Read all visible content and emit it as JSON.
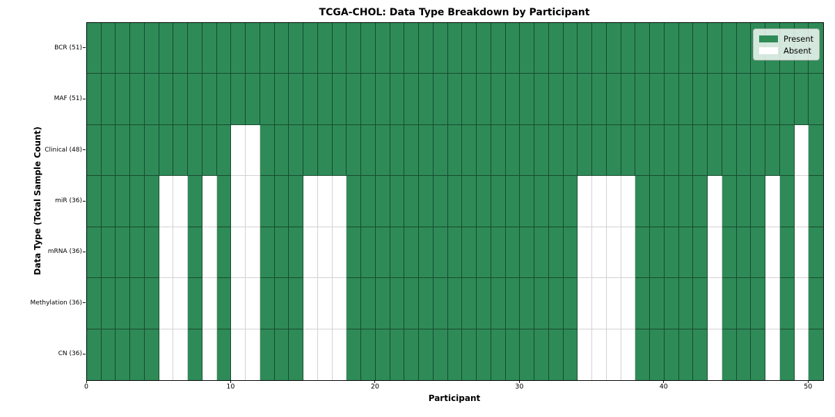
{
  "chart_data": {
    "type": "heatmap",
    "title": "TCGA-CHOL: Data Type Breakdown by Participant",
    "xlabel": "Participant",
    "ylabel": "Data Type (Total Sample Count)",
    "x_ticks": [
      0,
      10,
      20,
      30,
      40,
      50
    ],
    "x_range": [
      0,
      51
    ],
    "n_participants": 51,
    "legend_position": "upper right",
    "legend": [
      {
        "label": "Present",
        "color": "#2E8B57"
      },
      {
        "label": "Absent",
        "color": "#ffffff"
      }
    ],
    "colors": {
      "present": "#2E8B57",
      "absent": "#ffffff"
    },
    "rows": [
      {
        "label": "BCR (51)",
        "data_type": "BCR",
        "total_sample_count": 51,
        "absent_participants": []
      },
      {
        "label": "MAF (51)",
        "data_type": "MAF",
        "total_sample_count": 51,
        "absent_participants": []
      },
      {
        "label": "Clinical (48)",
        "data_type": "Clinical",
        "total_sample_count": 48,
        "absent_participants": [
          10,
          11,
          49
        ]
      },
      {
        "label": "miR (36)",
        "data_type": "miR",
        "total_sample_count": 36,
        "absent_participants": [
          5,
          6,
          8,
          10,
          11,
          15,
          16,
          17,
          34,
          35,
          36,
          37,
          43,
          47,
          49
        ]
      },
      {
        "label": "mRNA (36)",
        "data_type": "mRNA",
        "total_sample_count": 36,
        "absent_participants": [
          5,
          6,
          8,
          10,
          11,
          15,
          16,
          17,
          34,
          35,
          36,
          37,
          43,
          47,
          49
        ]
      },
      {
        "label": "Methylation (36)",
        "data_type": "Methylation",
        "total_sample_count": 36,
        "absent_participants": [
          5,
          6,
          8,
          10,
          11,
          15,
          16,
          17,
          34,
          35,
          36,
          37,
          43,
          47,
          49
        ]
      },
      {
        "label": "CN (36)",
        "data_type": "CN",
        "total_sample_count": 36,
        "absent_participants": [
          5,
          6,
          8,
          10,
          11,
          15,
          16,
          17,
          34,
          35,
          36,
          37,
          43,
          47,
          49
        ]
      }
    ]
  }
}
